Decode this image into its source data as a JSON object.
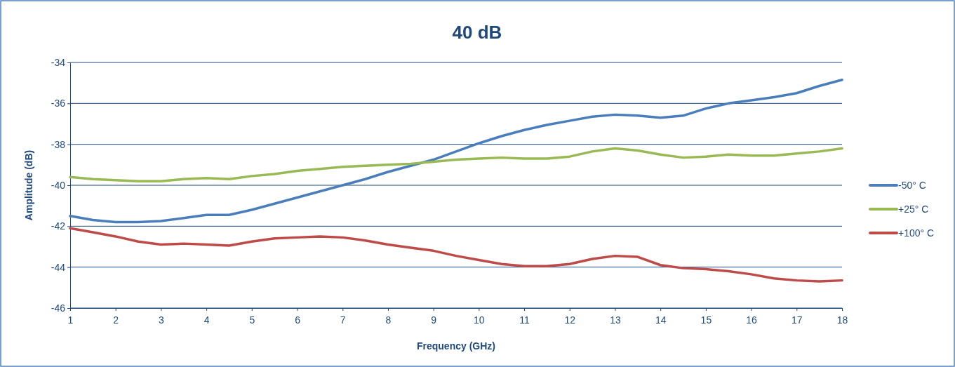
{
  "chart_data": {
    "type": "line",
    "title": "40 dB",
    "xlabel": "Frequency (GHz)",
    "ylabel": "Amplitude (dB)",
    "x": [
      1,
      1.5,
      2,
      2.5,
      3,
      3.5,
      4,
      4.5,
      5,
      5.5,
      6,
      6.5,
      7,
      7.5,
      8,
      8.5,
      9,
      9.5,
      10,
      10.5,
      11,
      11.5,
      12,
      12.5,
      13,
      13.5,
      14,
      14.5,
      15,
      15.5,
      16,
      16.5,
      17,
      17.5,
      18
    ],
    "xlim": [
      1,
      18
    ],
    "xticks": [
      1,
      2,
      3,
      4,
      5,
      6,
      7,
      8,
      9,
      10,
      11,
      12,
      13,
      14,
      15,
      16,
      17,
      18
    ],
    "ylim": [
      -46,
      -34
    ],
    "yticks": [
      -46,
      -44,
      -42,
      -40,
      -38,
      -36,
      -34
    ],
    "grid": "y",
    "legend": "right",
    "marker": "none",
    "line_style": "solid",
    "series": [
      {
        "name": "-50° C",
        "color": "#4a7ebb",
        "values": [
          -41.5,
          -41.7,
          -41.8,
          -41.8,
          -41.75,
          -41.6,
          -41.45,
          -41.45,
          -41.2,
          -40.9,
          -40.6,
          -40.3,
          -40.0,
          -39.7,
          -39.35,
          -39.05,
          -38.75,
          -38.35,
          -37.95,
          -37.6,
          -37.3,
          -37.05,
          -36.85,
          -36.65,
          -36.55,
          -36.6,
          -36.7,
          -36.6,
          -36.25,
          -36.0,
          -35.85,
          -35.7,
          -35.5,
          -35.15,
          -34.85
        ]
      },
      {
        "name": "+25° C",
        "color": "#98b954",
        "values": [
          -39.6,
          -39.7,
          -39.75,
          -39.8,
          -39.8,
          -39.7,
          -39.65,
          -39.7,
          -39.55,
          -39.45,
          -39.3,
          -39.2,
          -39.1,
          -39.05,
          -39.0,
          -38.95,
          -38.85,
          -38.75,
          -38.7,
          -38.65,
          -38.7,
          -38.7,
          -38.6,
          -38.35,
          -38.2,
          -38.3,
          -38.5,
          -38.65,
          -38.6,
          -38.5,
          -38.55,
          -38.55,
          -38.45,
          -38.35,
          -38.2
        ]
      },
      {
        "name": "+100° C",
        "color": "#be4b48",
        "values": [
          -42.1,
          -42.3,
          -42.5,
          -42.75,
          -42.9,
          -42.85,
          -42.9,
          -42.95,
          -42.75,
          -42.6,
          -42.55,
          -42.5,
          -42.55,
          -42.7,
          -42.9,
          -43.05,
          -43.2,
          -43.45,
          -43.65,
          -43.85,
          -43.95,
          -43.95,
          -43.85,
          -43.6,
          -43.45,
          -43.5,
          -43.9,
          -44.05,
          -44.1,
          -44.2,
          -44.35,
          -44.55,
          -44.65,
          -44.7,
          -44.65
        ]
      }
    ]
  }
}
